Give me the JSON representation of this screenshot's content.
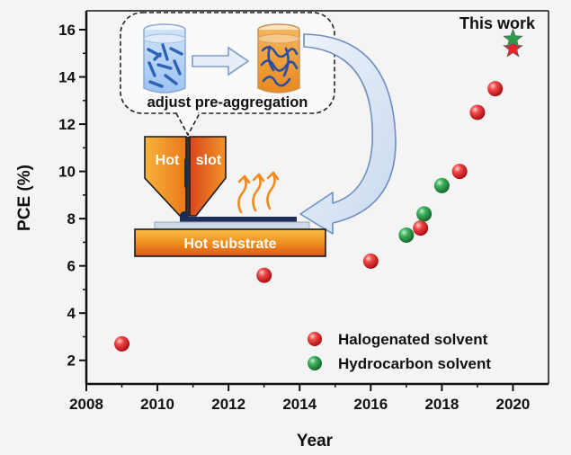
{
  "chart_data": {
    "type": "scatter",
    "title": "",
    "xlabel": "Year",
    "ylabel": "PCE (%)",
    "xlim": [
      2008,
      2021
    ],
    "ylim": [
      1,
      16.8
    ],
    "xticks": [
      2008,
      2010,
      2012,
      2014,
      2016,
      2018,
      2020
    ],
    "yticks": [
      2,
      4,
      6,
      8,
      10,
      12,
      14,
      16
    ],
    "grid": false,
    "legend_position": "bottom-right",
    "series": [
      {
        "name": "Halogenated solvent",
        "color": "#e8262a",
        "marker": "circle",
        "points": [
          {
            "x": 2009,
            "y": 2.7
          },
          {
            "x": 2013,
            "y": 5.6
          },
          {
            "x": 2016,
            "y": 6.2
          },
          {
            "x": 2017.4,
            "y": 7.6
          },
          {
            "x": 2018.5,
            "y": 10.0
          },
          {
            "x": 2019,
            "y": 12.5
          },
          {
            "x": 2019.5,
            "y": 13.5
          }
        ]
      },
      {
        "name": "Hydrocarbon solvent",
        "color": "#2e9a4c",
        "marker": "circle",
        "points": [
          {
            "x": 2017,
            "y": 7.3
          },
          {
            "x": 2017.5,
            "y": 8.2
          },
          {
            "x": 2018,
            "y": 9.4
          }
        ]
      }
    ],
    "highlight": {
      "label": "This work",
      "points": [
        {
          "x": 2020,
          "y": 15.6,
          "marker": "star",
          "color": "#2e9a4c"
        },
        {
          "x": 2020,
          "y": 15.2,
          "marker": "star",
          "color": "#e8262a"
        }
      ]
    }
  },
  "inset": {
    "pre_aggregation_label": "adjust pre-aggregation",
    "hot_slot_label_left": "Hot",
    "hot_slot_label_right": "slot",
    "substrate_label": "Hot substrate"
  },
  "colors": {
    "halogenated": "#e8262a",
    "hydrocarbon": "#2e9a4c",
    "slot_orange": "#f29a1f",
    "substrate_orange": "#f5a623"
  }
}
